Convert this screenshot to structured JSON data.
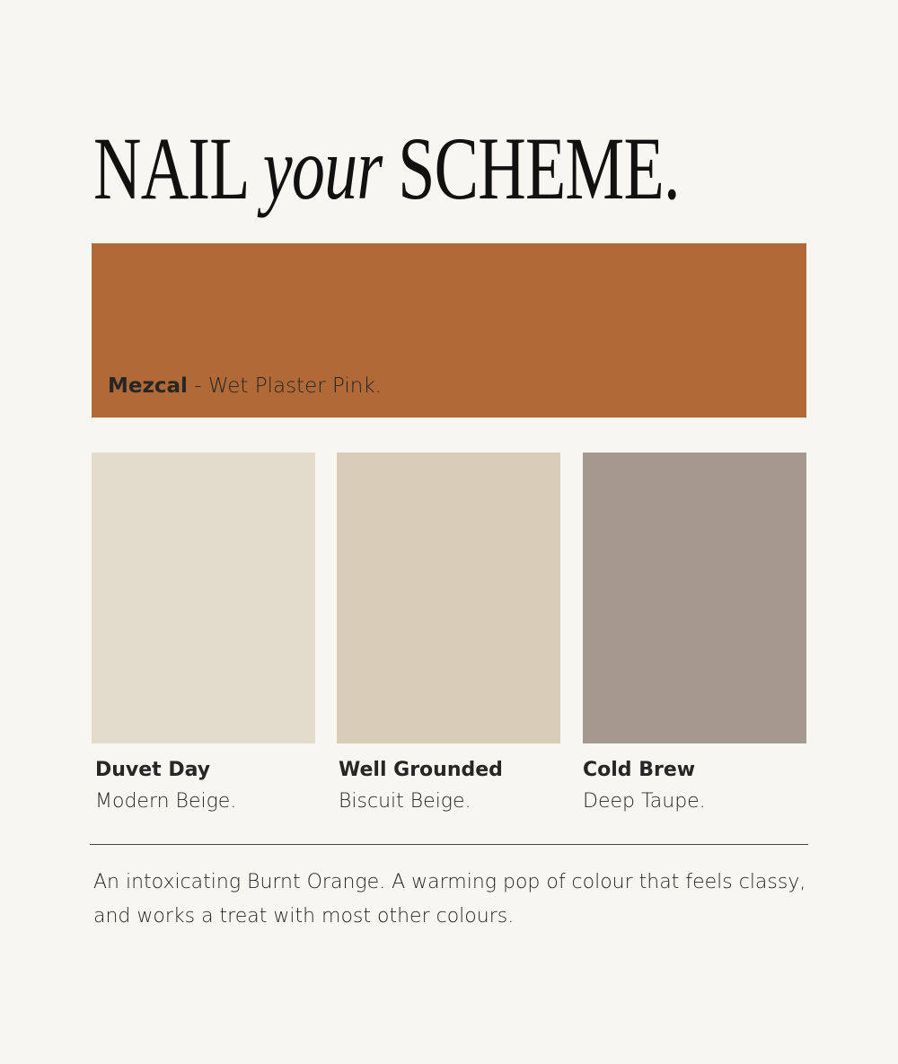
{
  "title": {
    "part1": "NAIL ",
    "italic": "your",
    "part2": " SCHEME."
  },
  "hero": {
    "name": "Mezcal",
    "separator": " - ",
    "description": "Wet Plaster Pink.",
    "color": "#b16a37"
  },
  "swatches": [
    {
      "name": "Duvet Day",
      "description": "Modern Beige.",
      "color": "#e3dbcc"
    },
    {
      "name": "Well Grounded",
      "description": "Biscuit Beige.",
      "color": "#dacdb7"
    },
    {
      "name": "Cold Brew",
      "description": "Deep Taupe.",
      "color": "#a5988e"
    }
  ],
  "description": "An intoxicating Burnt Orange. A warming pop of colour that feels classy, and works a treat with most other colours."
}
